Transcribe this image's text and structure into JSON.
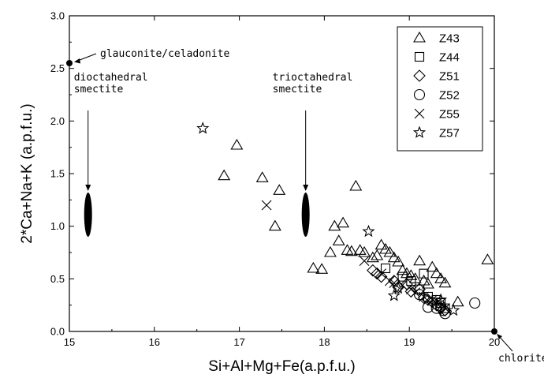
{
  "chart_data": {
    "type": "scatter",
    "title": "",
    "xlabel": "Si+Al+Mg+Fe(a.p.f.u.)",
    "ylabel": "2*Ca+Na+K (a.p.f.u.)",
    "xlim": [
      15,
      20
    ],
    "ylim": [
      0,
      3
    ],
    "xticks": [
      "15",
      "16",
      "17",
      "18",
      "19",
      "20"
    ],
    "yticks": [
      "0.0",
      "0.5",
      "1.0",
      "1.5",
      "2.0",
      "2.5",
      "3.0"
    ],
    "legend_position": "top-right",
    "grid": false,
    "series": [
      {
        "name": "Z43",
        "marker": "triangle",
        "points": [
          [
            16.82,
            1.48
          ],
          [
            16.97,
            1.77
          ],
          [
            17.27,
            1.46
          ],
          [
            17.47,
            1.34
          ],
          [
            17.42,
            1.0
          ],
          [
            17.87,
            0.6
          ],
          [
            17.97,
            0.59
          ],
          [
            18.07,
            0.75
          ],
          [
            18.12,
            1.0
          ],
          [
            18.17,
            0.86
          ],
          [
            18.22,
            1.03
          ],
          [
            18.27,
            0.77
          ],
          [
            18.32,
            0.76
          ],
          [
            18.37,
            1.38
          ],
          [
            18.42,
            0.77
          ],
          [
            18.47,
            0.75
          ],
          [
            18.57,
            0.7
          ],
          [
            18.62,
            0.72
          ],
          [
            18.67,
            0.82
          ],
          [
            18.72,
            0.78
          ],
          [
            18.77,
            0.75
          ],
          [
            18.82,
            0.7
          ],
          [
            18.87,
            0.66
          ],
          [
            18.92,
            0.58
          ],
          [
            18.97,
            0.55
          ],
          [
            19.02,
            0.53
          ],
          [
            19.07,
            0.5
          ],
          [
            19.12,
            0.67
          ],
          [
            19.17,
            0.48
          ],
          [
            19.22,
            0.45
          ],
          [
            19.27,
            0.61
          ],
          [
            19.32,
            0.55
          ],
          [
            19.37,
            0.5
          ],
          [
            19.42,
            0.46
          ],
          [
            19.57,
            0.28
          ],
          [
            19.92,
            0.68
          ]
        ]
      },
      {
        "name": "Z44",
        "marker": "square",
        "points": [
          [
            18.72,
            0.6
          ],
          [
            18.92,
            0.52
          ],
          [
            19.02,
            0.48
          ],
          [
            19.12,
            0.4
          ],
          [
            19.17,
            0.55
          ],
          [
            19.22,
            0.33
          ],
          [
            19.32,
            0.3
          ],
          [
            19.37,
            0.27
          ],
          [
            19.42,
            0.22
          ]
        ]
      },
      {
        "name": "Z51",
        "marker": "diamond",
        "points": [
          [
            18.57,
            0.58
          ],
          [
            18.62,
            0.55
          ],
          [
            18.67,
            0.52
          ],
          [
            18.82,
            0.48
          ],
          [
            18.87,
            0.42
          ],
          [
            18.97,
            0.45
          ],
          [
            19.02,
            0.38
          ],
          [
            19.12,
            0.4
          ],
          [
            19.17,
            0.32
          ],
          [
            19.22,
            0.3
          ],
          [
            19.27,
            0.28
          ],
          [
            19.32,
            0.25
          ],
          [
            19.37,
            0.22
          ],
          [
            19.42,
            0.2
          ]
        ]
      },
      {
        "name": "Z52",
        "marker": "circle",
        "points": [
          [
            19.12,
            0.35
          ],
          [
            19.22,
            0.23
          ],
          [
            19.32,
            0.22
          ],
          [
            19.37,
            0.24
          ],
          [
            19.4,
            0.2
          ],
          [
            19.42,
            0.17
          ],
          [
            19.77,
            0.27
          ]
        ]
      },
      {
        "name": "Z55",
        "marker": "cross",
        "points": [
          [
            17.32,
            1.2
          ],
          [
            18.47,
            0.67
          ],
          [
            18.67,
            0.55
          ],
          [
            18.77,
            0.48
          ],
          [
            18.82,
            0.46
          ],
          [
            18.92,
            0.44
          ],
          [
            19.02,
            0.4
          ],
          [
            19.07,
            0.37
          ],
          [
            19.17,
            0.33
          ],
          [
            19.27,
            0.3
          ],
          [
            19.32,
            0.27
          ],
          [
            19.42,
            0.22
          ]
        ]
      },
      {
        "name": "Z57",
        "marker": "star",
        "points": [
          [
            16.57,
            1.93
          ],
          [
            18.52,
            0.95
          ],
          [
            18.82,
            0.34
          ],
          [
            18.87,
            0.41
          ],
          [
            19.37,
            0.3
          ],
          [
            19.52,
            0.2
          ]
        ]
      }
    ],
    "reference_points": [
      {
        "label": "glauconite/celadonite",
        "x": 15.0,
        "y": 2.55
      },
      {
        "label": "chlorite",
        "x": 20.0,
        "y": 0.0
      }
    ],
    "reference_ellipses": [
      {
        "label": "dioctahedral smectite",
        "x": 15.22,
        "y_min": 0.9,
        "y_max": 1.32
      },
      {
        "label": "trioctahedral smectite",
        "x": 17.78,
        "y_min": 0.9,
        "y_max": 1.32
      }
    ]
  }
}
